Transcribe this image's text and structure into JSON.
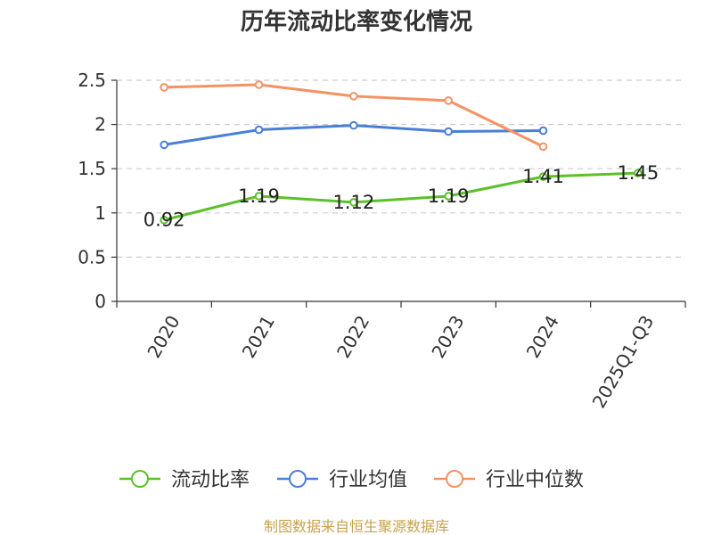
{
  "chart_data": {
    "type": "line",
    "title": "历年流动比率变化情况",
    "categories": [
      "2020",
      "2021",
      "2022",
      "2023",
      "2024",
      "2025Q1-Q3"
    ],
    "ylim": [
      0,
      2.5
    ],
    "yticks": [
      "0",
      "0.5",
      "1",
      "1.5",
      "2",
      "2.5"
    ],
    "grid": true,
    "legend_position": "bottom",
    "series": [
      {
        "name": "流动比率",
        "color": "#5cc02a",
        "values": [
          0.92,
          1.19,
          1.12,
          1.19,
          1.41,
          1.45
        ],
        "labels": [
          "0.92",
          "1.19",
          "1.12",
          "1.19",
          "1.41",
          "1.45"
        ]
      },
      {
        "name": "行业均值",
        "color": "#4a7fd6",
        "values": [
          1.77,
          1.94,
          1.99,
          1.92,
          1.93,
          null
        ]
      },
      {
        "name": "行业中位数",
        "color": "#f59262",
        "values": [
          2.42,
          2.45,
          2.32,
          2.27,
          1.75,
          null
        ]
      }
    ],
    "source": "制图数据来自恒生聚源数据库",
    "source_color": "#c9a24b"
  }
}
